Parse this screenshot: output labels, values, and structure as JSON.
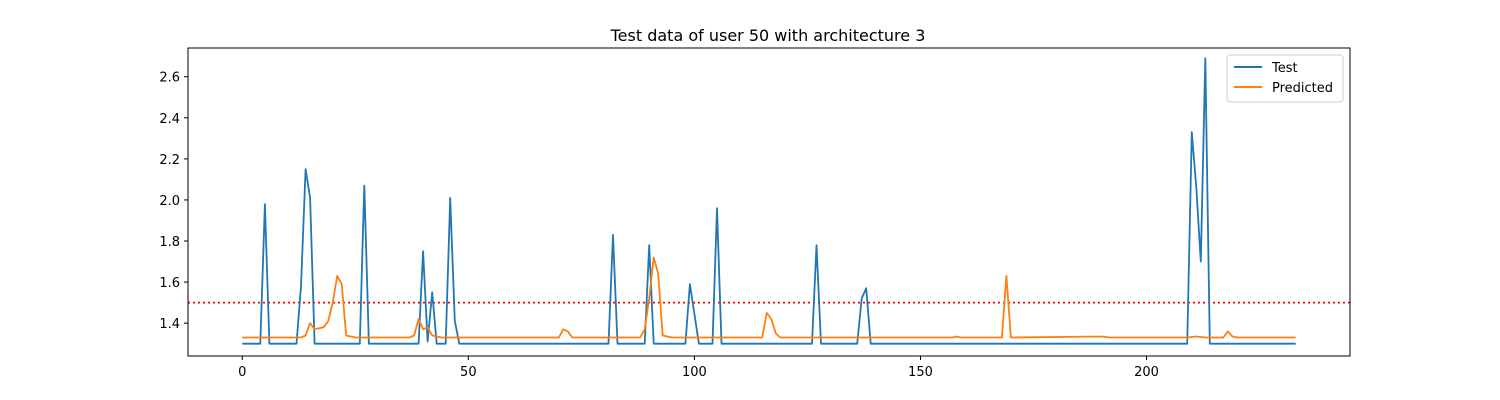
{
  "chart_data": {
    "type": "line",
    "title": "Test data of user 50 with architecture 3",
    "xlabel": "",
    "ylabel": "",
    "xlim": [
      -12,
      245
    ],
    "ylim": [
      1.24,
      2.74
    ],
    "xticks": [
      0,
      50,
      100,
      150,
      200
    ],
    "yticks": [
      1.4,
      1.6,
      1.8,
      2.0,
      2.2,
      2.4,
      2.6
    ],
    "grid": false,
    "legend_position": "top-right",
    "threshold": {
      "y": 1.5,
      "color": "#ff0000",
      "style": "dotted"
    },
    "series": [
      {
        "name": "Test",
        "color": "#1f77b4",
        "points": [
          [
            0,
            1.3
          ],
          [
            4,
            1.3
          ],
          [
            5,
            1.98
          ],
          [
            6,
            1.3
          ],
          [
            12,
            1.3
          ],
          [
            13,
            1.58
          ],
          [
            14,
            2.15
          ],
          [
            15,
            2.01
          ],
          [
            16,
            1.3
          ],
          [
            26,
            1.3
          ],
          [
            27,
            2.07
          ],
          [
            28,
            1.3
          ],
          [
            39,
            1.3
          ],
          [
            40,
            1.75
          ],
          [
            41,
            1.31
          ],
          [
            42,
            1.55
          ],
          [
            43,
            1.3
          ],
          [
            45,
            1.3
          ],
          [
            46,
            2.01
          ],
          [
            47,
            1.41
          ],
          [
            48,
            1.3
          ],
          [
            81,
            1.3
          ],
          [
            82,
            1.83
          ],
          [
            83,
            1.3
          ],
          [
            89,
            1.3
          ],
          [
            90,
            1.78
          ],
          [
            91,
            1.3
          ],
          [
            98,
            1.3
          ],
          [
            99,
            1.59
          ],
          [
            101,
            1.3
          ],
          [
            104,
            1.3
          ],
          [
            105,
            1.96
          ],
          [
            106,
            1.3
          ],
          [
            126,
            1.3
          ],
          [
            127,
            1.78
          ],
          [
            128,
            1.3
          ],
          [
            136,
            1.3
          ],
          [
            137,
            1.52
          ],
          [
            138,
            1.57
          ],
          [
            139,
            1.3
          ],
          [
            209,
            1.3
          ],
          [
            210,
            2.33
          ],
          [
            211,
            2.06
          ],
          [
            212,
            1.7
          ],
          [
            213,
            2.69
          ],
          [
            214,
            1.3
          ],
          [
            233,
            1.3
          ]
        ]
      },
      {
        "name": "Predicted",
        "color": "#ff7f0e",
        "points": [
          [
            0,
            1.33
          ],
          [
            13,
            1.33
          ],
          [
            14,
            1.34
          ],
          [
            15,
            1.4
          ],
          [
            16,
            1.37
          ],
          [
            18,
            1.38
          ],
          [
            19,
            1.41
          ],
          [
            20,
            1.5
          ],
          [
            21,
            1.63
          ],
          [
            22,
            1.59
          ],
          [
            23,
            1.34
          ],
          [
            25,
            1.33
          ],
          [
            37,
            1.33
          ],
          [
            38,
            1.34
          ],
          [
            39,
            1.42
          ],
          [
            40,
            1.37
          ],
          [
            41,
            1.38
          ],
          [
            42,
            1.34
          ],
          [
            44,
            1.33
          ],
          [
            70,
            1.33
          ],
          [
            71,
            1.37
          ],
          [
            72,
            1.36
          ],
          [
            73,
            1.33
          ],
          [
            88,
            1.33
          ],
          [
            89,
            1.37
          ],
          [
            90,
            1.52
          ],
          [
            91,
            1.72
          ],
          [
            92,
            1.64
          ],
          [
            93,
            1.34
          ],
          [
            95,
            1.33
          ],
          [
            115,
            1.33
          ],
          [
            116,
            1.45
          ],
          [
            117,
            1.42
          ],
          [
            118,
            1.35
          ],
          [
            119,
            1.33
          ],
          [
            157,
            1.33
          ],
          [
            158,
            1.335
          ],
          [
            159,
            1.33
          ],
          [
            168,
            1.33
          ],
          [
            169,
            1.63
          ],
          [
            170,
            1.33
          ],
          [
            190,
            1.335
          ],
          [
            192,
            1.33
          ],
          [
            209,
            1.33
          ],
          [
            211,
            1.335
          ],
          [
            213,
            1.33
          ],
          [
            217,
            1.33
          ],
          [
            218,
            1.36
          ],
          [
            219,
            1.335
          ],
          [
            220,
            1.33
          ],
          [
            233,
            1.33
          ]
        ]
      }
    ]
  }
}
